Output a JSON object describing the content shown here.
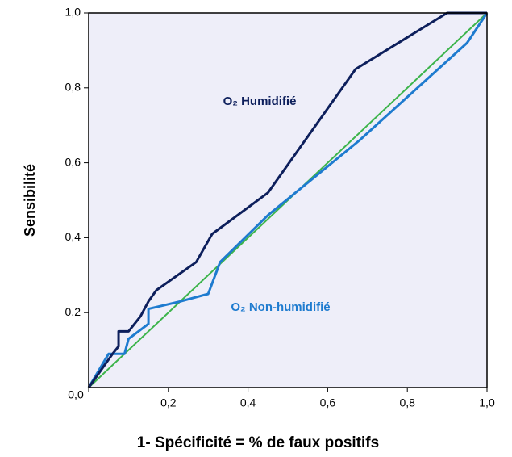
{
  "chart_data": {
    "type": "line",
    "xlabel": "1- Spécificité = % de faux positifs",
    "ylabel": "Sensibilité",
    "xlim": [
      0,
      1
    ],
    "ylim": [
      0,
      1
    ],
    "xticks": [
      {
        "value": 0,
        "label": "0,0"
      },
      {
        "value": 0.2,
        "label": "0,2"
      },
      {
        "value": 0.4,
        "label": "0,4"
      },
      {
        "value": 0.6,
        "label": "0,6"
      },
      {
        "value": 0.8,
        "label": "0,8"
      },
      {
        "value": 1,
        "label": "1,0"
      }
    ],
    "yticks": [
      {
        "value": 0.2,
        "label": "0,2"
      },
      {
        "value": 0.4,
        "label": "0,4"
      },
      {
        "value": 0.6,
        "label": "0,6"
      },
      {
        "value": 0.8,
        "label": "0,8"
      },
      {
        "value": 1,
        "label": "1,0"
      }
    ],
    "background": "#eeeef9",
    "series": [
      {
        "name": "O₂ Humidifié",
        "color": "#0d1f5c",
        "x": [
          0,
          0.04,
          0.06,
          0.075,
          0.075,
          0.1,
          0.13,
          0.15,
          0.17,
          0.27,
          0.31,
          0.45,
          0.67,
          0.9,
          1.0
        ],
        "y": [
          0,
          0.06,
          0.09,
          0.11,
          0.15,
          0.15,
          0.19,
          0.23,
          0.26,
          0.335,
          0.41,
          0.52,
          0.85,
          1.0,
          1.0
        ]
      },
      {
        "name": "O₂ Non-humidifié",
        "color": "#1e7bcf",
        "x": [
          0,
          0.05,
          0.09,
          0.1,
          0.15,
          0.15,
          0.23,
          0.3,
          0.33,
          0.45,
          0.68,
          0.95,
          1.0
        ],
        "y": [
          0,
          0.09,
          0.09,
          0.13,
          0.17,
          0.21,
          0.23,
          0.25,
          0.335,
          0.46,
          0.66,
          0.92,
          1.0
        ]
      },
      {
        "color": "#3cb44b",
        "x": [
          0,
          1
        ],
        "y": [
          0,
          1
        ]
      }
    ]
  }
}
